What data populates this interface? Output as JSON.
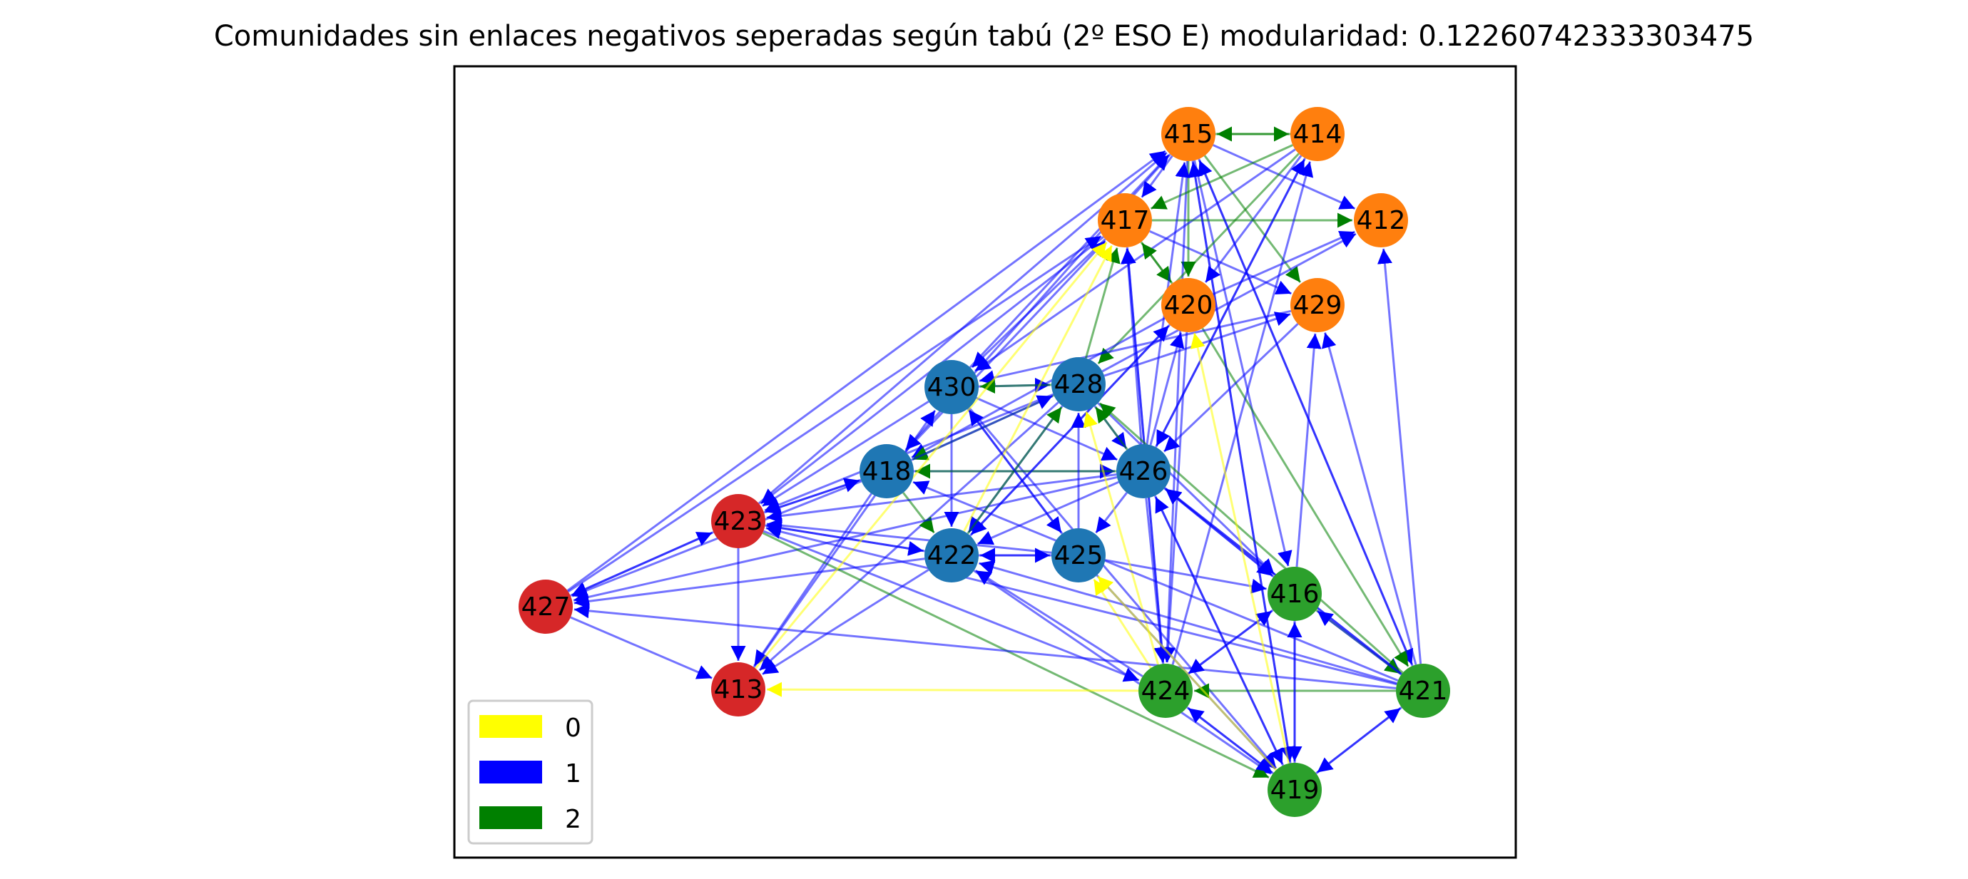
{
  "title": "Comunidades sin enlaces negativos seperadas según tabú (2º ESO E) modularidad: 0.12260742333303475",
  "colors": {
    "community": {
      "orange": "#ff7f0e",
      "blue": "#1f77b4",
      "red": "#d62728",
      "green": "#2ca02c"
    },
    "edge": {
      "0": "#ffff00",
      "1": "#0000ff",
      "2": "#008000"
    }
  },
  "legend": [
    {
      "label": "0",
      "color": "#ffff00"
    },
    {
      "label": "1",
      "color": "#0000ff"
    },
    {
      "label": "2",
      "color": "#008000"
    }
  ],
  "nodes": [
    {
      "id": "415",
      "community": "orange"
    },
    {
      "id": "414",
      "community": "orange"
    },
    {
      "id": "417",
      "community": "orange"
    },
    {
      "id": "412",
      "community": "orange"
    },
    {
      "id": "420",
      "community": "orange"
    },
    {
      "id": "429",
      "community": "orange"
    },
    {
      "id": "430",
      "community": "blue"
    },
    {
      "id": "428",
      "community": "blue"
    },
    {
      "id": "418",
      "community": "blue"
    },
    {
      "id": "426",
      "community": "blue"
    },
    {
      "id": "422",
      "community": "blue"
    },
    {
      "id": "425",
      "community": "blue"
    },
    {
      "id": "423",
      "community": "red"
    },
    {
      "id": "427",
      "community": "red"
    },
    {
      "id": "413",
      "community": "red"
    },
    {
      "id": "416",
      "community": "green"
    },
    {
      "id": "424",
      "community": "green"
    },
    {
      "id": "421",
      "community": "green"
    },
    {
      "id": "419",
      "community": "green"
    }
  ],
  "edges": [
    {
      "s": "415",
      "t": "414",
      "w": "2"
    },
    {
      "s": "414",
      "t": "415",
      "w": "2"
    },
    {
      "s": "415",
      "t": "412",
      "w": "1"
    },
    {
      "s": "415",
      "t": "417",
      "w": "1"
    },
    {
      "s": "415",
      "t": "420",
      "w": "2"
    },
    {
      "s": "415",
      "t": "429",
      "w": "2"
    },
    {
      "s": "415",
      "t": "424",
      "w": "1"
    },
    {
      "s": "415",
      "t": "419",
      "w": "1"
    },
    {
      "s": "415",
      "t": "421",
      "w": "1"
    },
    {
      "s": "415",
      "t": "416",
      "w": "1"
    },
    {
      "s": "415",
      "t": "418",
      "w": "1"
    },
    {
      "s": "414",
      "t": "417",
      "w": "2"
    },
    {
      "s": "414",
      "t": "420",
      "w": "1"
    },
    {
      "s": "414",
      "t": "428",
      "w": "2"
    },
    {
      "s": "414",
      "t": "430",
      "w": "1"
    },
    {
      "s": "414",
      "t": "426",
      "w": "1"
    },
    {
      "s": "417",
      "t": "412",
      "w": "2"
    },
    {
      "s": "417",
      "t": "420",
      "w": "2"
    },
    {
      "s": "417",
      "t": "429",
      "w": "1"
    },
    {
      "s": "417",
      "t": "430",
      "w": "1"
    },
    {
      "s": "417",
      "t": "423",
      "w": "1"
    },
    {
      "s": "417",
      "t": "424",
      "w": "1"
    },
    {
      "s": "420",
      "t": "417",
      "w": "2"
    },
    {
      "s": "420",
      "t": "412",
      "w": "1"
    },
    {
      "s": "420",
      "t": "424",
      "w": "1"
    },
    {
      "s": "420",
      "t": "421",
      "w": "2"
    },
    {
      "s": "420",
      "t": "422",
      "w": "1"
    },
    {
      "s": "420",
      "t": "418",
      "w": "1"
    },
    {
      "s": "429",
      "t": "430",
      "w": "1"
    },
    {
      "s": "429",
      "t": "426",
      "w": "1"
    },
    {
      "s": "430",
      "t": "415",
      "w": "1"
    },
    {
      "s": "430",
      "t": "428",
      "w": "1"
    },
    {
      "s": "430",
      "t": "422",
      "w": "1"
    },
    {
      "s": "430",
      "t": "426",
      "w": "1"
    },
    {
      "s": "430",
      "t": "425",
      "w": "1"
    },
    {
      "s": "430",
      "t": "423",
      "w": "1"
    },
    {
      "s": "430",
      "t": "419",
      "w": "1"
    },
    {
      "s": "428",
      "t": "430",
      "w": "2"
    },
    {
      "s": "428",
      "t": "418",
      "w": "2"
    },
    {
      "s": "428",
      "t": "426",
      "w": "1"
    },
    {
      "s": "428",
      "t": "422",
      "w": "1"
    },
    {
      "s": "428",
      "t": "423",
      "w": "1"
    },
    {
      "s": "428",
      "t": "417",
      "w": "2"
    },
    {
      "s": "428",
      "t": "412",
      "w": "1"
    },
    {
      "s": "428",
      "t": "429",
      "w": "1"
    },
    {
      "s": "428",
      "t": "416",
      "w": "1"
    },
    {
      "s": "428",
      "t": "413",
      "w": "1"
    },
    {
      "s": "418",
      "t": "428",
      "w": "1"
    },
    {
      "s": "418",
      "t": "426",
      "w": "1"
    },
    {
      "s": "418",
      "t": "422",
      "w": "2"
    },
    {
      "s": "418",
      "t": "423",
      "w": "1"
    },
    {
      "s": "418",
      "t": "427",
      "w": "1"
    },
    {
      "s": "418",
      "t": "413",
      "w": "1"
    },
    {
      "s": "418",
      "t": "417",
      "w": "1"
    },
    {
      "s": "426",
      "t": "418",
      "w": "2"
    },
    {
      "s": "426",
      "t": "428",
      "w": "2"
    },
    {
      "s": "426",
      "t": "422",
      "w": "1"
    },
    {
      "s": "426",
      "t": "425",
      "w": "1"
    },
    {
      "s": "426",
      "t": "423",
      "w": "1"
    },
    {
      "s": "426",
      "t": "416",
      "w": "1"
    },
    {
      "s": "426",
      "t": "424",
      "w": "1"
    },
    {
      "s": "426",
      "t": "421",
      "w": "1"
    },
    {
      "s": "426",
      "t": "415",
      "w": "1"
    },
    {
      "s": "426",
      "t": "414",
      "w": "1"
    },
    {
      "s": "426",
      "t": "420",
      "w": "1"
    },
    {
      "s": "426",
      "t": "417",
      "w": "1"
    },
    {
      "s": "426",
      "t": "427",
      "w": "1"
    },
    {
      "s": "426",
      "t": "419",
      "w": "1"
    },
    {
      "s": "422",
      "t": "425",
      "w": "1"
    },
    {
      "s": "422",
      "t": "423",
      "w": "1"
    },
    {
      "s": "422",
      "t": "427",
      "w": "1"
    },
    {
      "s": "422",
      "t": "413",
      "w": "1"
    },
    {
      "s": "422",
      "t": "428",
      "w": "2"
    },
    {
      "s": "422",
      "t": "417",
      "w": "0"
    },
    {
      "s": "422",
      "t": "420",
      "w": "1"
    },
    {
      "s": "422",
      "t": "419",
      "w": "1"
    },
    {
      "s": "425",
      "t": "422",
      "w": "1"
    },
    {
      "s": "425",
      "t": "430",
      "w": "1"
    },
    {
      "s": "425",
      "t": "423",
      "w": "1"
    },
    {
      "s": "425",
      "t": "416",
      "w": "1"
    },
    {
      "s": "425",
      "t": "419",
      "w": "1"
    },
    {
      "s": "425",
      "t": "428",
      "w": "1"
    },
    {
      "s": "423",
      "t": "427",
      "w": "1"
    },
    {
      "s": "423",
      "t": "413",
      "w": "1"
    },
    {
      "s": "423",
      "t": "415",
      "w": "1"
    },
    {
      "s": "423",
      "t": "418",
      "w": "1"
    },
    {
      "s": "423",
      "t": "422",
      "w": "1"
    },
    {
      "s": "423",
      "t": "424",
      "w": "1"
    },
    {
      "s": "423",
      "t": "419",
      "w": "2"
    },
    {
      "s": "427",
      "t": "413",
      "w": "1"
    },
    {
      "s": "427",
      "t": "415",
      "w": "1"
    },
    {
      "s": "427",
      "t": "423",
      "w": "1"
    },
    {
      "s": "427",
      "t": "417",
      "w": "1"
    },
    {
      "s": "413",
      "t": "417",
      "w": "0"
    },
    {
      "s": "413",
      "t": "430",
      "w": "1"
    },
    {
      "s": "416",
      "t": "421",
      "w": "2"
    },
    {
      "s": "416",
      "t": "419",
      "w": "1"
    },
    {
      "s": "416",
      "t": "424",
      "w": "1"
    },
    {
      "s": "416",
      "t": "429",
      "w": "1"
    },
    {
      "s": "416",
      "t": "426",
      "w": "1"
    },
    {
      "s": "424",
      "t": "413",
      "w": "0"
    },
    {
      "s": "424",
      "t": "419",
      "w": "1"
    },
    {
      "s": "424",
      "t": "416",
      "w": "1"
    },
    {
      "s": "424",
      "t": "414",
      "w": "1"
    },
    {
      "s": "424",
      "t": "417",
      "w": "1"
    },
    {
      "s": "424",
      "t": "422",
      "w": "1"
    },
    {
      "s": "424",
      "t": "425",
      "w": "0"
    },
    {
      "s": "424",
      "t": "428",
      "w": "0"
    },
    {
      "s": "421",
      "t": "424",
      "w": "2"
    },
    {
      "s": "421",
      "t": "416",
      "w": "1"
    },
    {
      "s": "421",
      "t": "419",
      "w": "1"
    },
    {
      "s": "421",
      "t": "427",
      "w": "1"
    },
    {
      "s": "421",
      "t": "423",
      "w": "1"
    },
    {
      "s": "421",
      "t": "422",
      "w": "1"
    },
    {
      "s": "421",
      "t": "418",
      "w": "1"
    },
    {
      "s": "421",
      "t": "412",
      "w": "1"
    },
    {
      "s": "421",
      "t": "429",
      "w": "1"
    },
    {
      "s": "421",
      "t": "426",
      "w": "1"
    },
    {
      "s": "421",
      "t": "428",
      "w": "2"
    },
    {
      "s": "421",
      "t": "415",
      "w": "1"
    },
    {
      "s": "419",
      "t": "421",
      "w": "1"
    },
    {
      "s": "419",
      "t": "424",
      "w": "1"
    },
    {
      "s": "419",
      "t": "416",
      "w": "1"
    },
    {
      "s": "419",
      "t": "425",
      "w": "0"
    },
    {
      "s": "419",
      "t": "420",
      "w": "0"
    },
    {
      "s": "419",
      "t": "415",
      "w": "1"
    },
    {
      "s": "419",
      "t": "426",
      "w": "1"
    }
  ]
}
